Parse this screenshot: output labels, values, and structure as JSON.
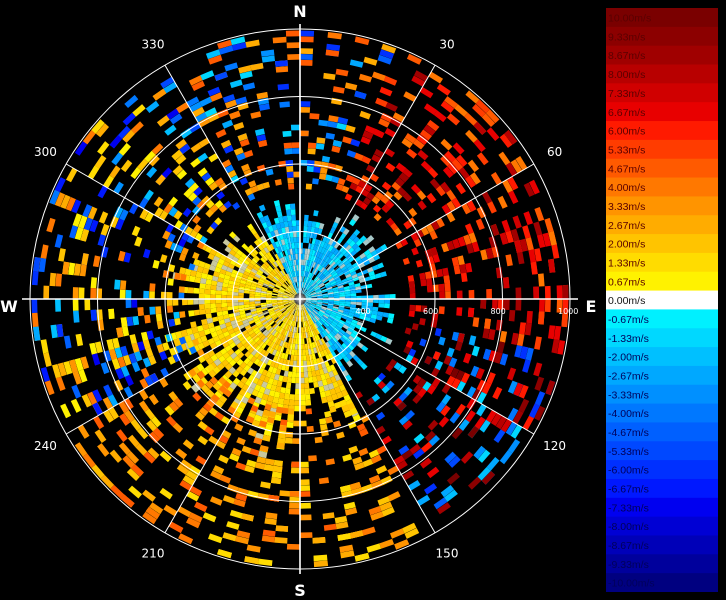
{
  "compass": {
    "north": "N",
    "east": "E",
    "south": "S",
    "west": "W"
  },
  "azimuth_labels": [
    {
      "text": "30",
      "deg": 30
    },
    {
      "text": "60",
      "deg": 60
    },
    {
      "text": "120",
      "deg": 120
    },
    {
      "text": "150",
      "deg": 150
    },
    {
      "text": "210",
      "deg": 210
    },
    {
      "text": "240",
      "deg": 240
    },
    {
      "text": "300",
      "deg": 300
    },
    {
      "text": "330",
      "deg": 330
    }
  ],
  "range_rings": [
    {
      "text": "400",
      "value": 400
    },
    {
      "text": "600",
      "value": 600
    },
    {
      "text": "800",
      "value": 800
    },
    {
      "text": "1000",
      "value": 1000
    }
  ],
  "legend": [
    {
      "label": "10.00m/s",
      "color": "#7a0000"
    },
    {
      "label": "9.33m/s",
      "color": "#8c0000"
    },
    {
      "label": "8.67m/s",
      "color": "#a00000"
    },
    {
      "label": "8.00m/s",
      "color": "#b80000"
    },
    {
      "label": "7.33m/s",
      "color": "#d00000"
    },
    {
      "label": "6.67m/s",
      "color": "#e80000"
    },
    {
      "label": "6.00m/s",
      "color": "#ff1a00"
    },
    {
      "label": "5.33m/s",
      "color": "#ff3c00"
    },
    {
      "label": "4.67m/s",
      "color": "#ff5a00"
    },
    {
      "label": "4.00m/s",
      "color": "#ff7800"
    },
    {
      "label": "3.33m/s",
      "color": "#ff9400"
    },
    {
      "label": "2.67m/s",
      "color": "#ffac00"
    },
    {
      "label": "2.00m/s",
      "color": "#ffc400"
    },
    {
      "label": "1.33m/s",
      "color": "#ffdc00"
    },
    {
      "label": "0.67m/s",
      "color": "#fff200"
    },
    {
      "label": "0.00m/s",
      "color": "#ffffff"
    },
    {
      "label": "-0.67m/s",
      "color": "#00f0ff"
    },
    {
      "label": "-1.33m/s",
      "color": "#00d8ff"
    },
    {
      "label": "-2.00m/s",
      "color": "#00c0ff"
    },
    {
      "label": "-2.67m/s",
      "color": "#00a8ff"
    },
    {
      "label": "-3.33m/s",
      "color": "#0090ff"
    },
    {
      "label": "-4.00m/s",
      "color": "#0078ff"
    },
    {
      "label": "-4.67m/s",
      "color": "#0060ff"
    },
    {
      "label": "-5.33m/s",
      "color": "#0048ff"
    },
    {
      "label": "-6.00m/s",
      "color": "#0030ff"
    },
    {
      "label": "-6.67m/s",
      "color": "#0018ff"
    },
    {
      "label": "-7.33m/s",
      "color": "#0000f0"
    },
    {
      "label": "-8.00m/s",
      "color": "#0000d4"
    },
    {
      "label": "-8.67m/s",
      "color": "#0000b8"
    },
    {
      "label": "-9.33m/s",
      "color": "#00009c"
    },
    {
      "label": "-10.00m/s",
      "color": "#000080"
    }
  ]
}
